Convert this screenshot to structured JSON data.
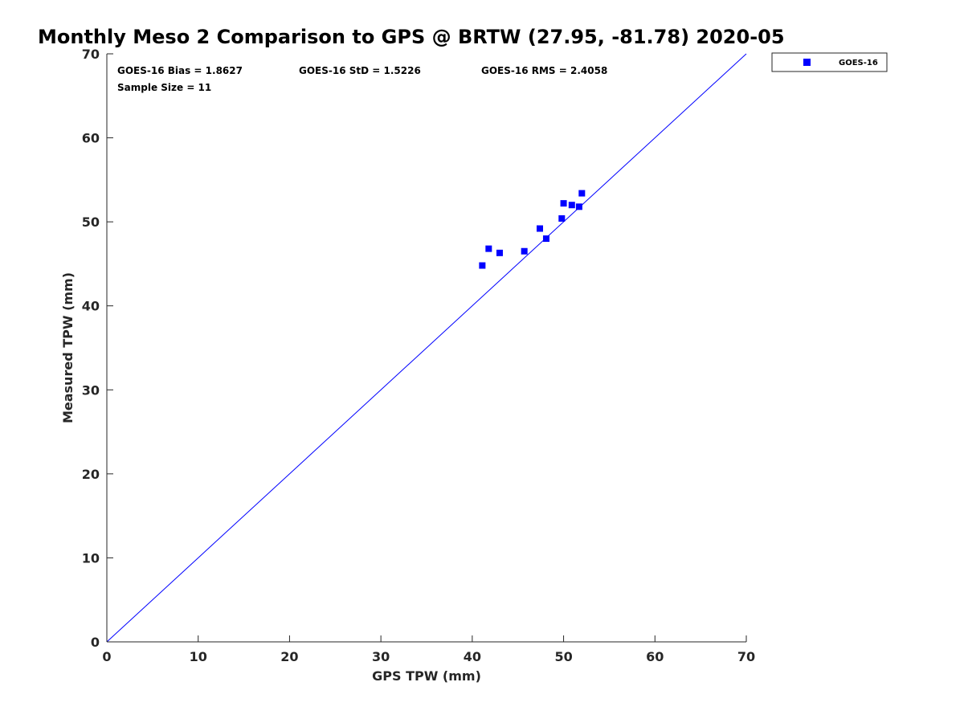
{
  "chart_data": {
    "type": "scatter",
    "title": "Monthly Meso 2 Comparison to GPS @ BRTW (27.95, -81.78) 2020-05",
    "xlabel": "GPS TPW (mm)",
    "ylabel": "Measured TPW (mm)",
    "xlim": [
      0,
      70
    ],
    "ylim": [
      0,
      70
    ],
    "xticks": [
      0,
      10,
      20,
      30,
      40,
      50,
      60,
      70
    ],
    "yticks": [
      0,
      10,
      20,
      30,
      40,
      50,
      60,
      70
    ],
    "grid": false,
    "legend_position": "outside-top-right",
    "reference_line": {
      "description": "1:1 line",
      "x": [
        0,
        70
      ],
      "y": [
        0,
        70
      ],
      "color": "#0000ff"
    },
    "annotations": [
      "GOES-16 Bias = 1.8627",
      "GOES-16 StD = 1.5226",
      "GOES-16 RMS = 2.4058",
      "Sample Size = 11"
    ],
    "series": [
      {
        "name": "GOES-16",
        "color": "#0000ff",
        "marker": "square",
        "x": [
          41.1,
          41.8,
          43.0,
          45.7,
          47.4,
          48.1,
          49.8,
          50.0,
          50.9,
          51.7,
          52.0
        ],
        "y": [
          44.8,
          46.8,
          46.3,
          46.5,
          49.2,
          48.0,
          50.4,
          52.2,
          52.0,
          51.8,
          53.4
        ]
      }
    ]
  }
}
